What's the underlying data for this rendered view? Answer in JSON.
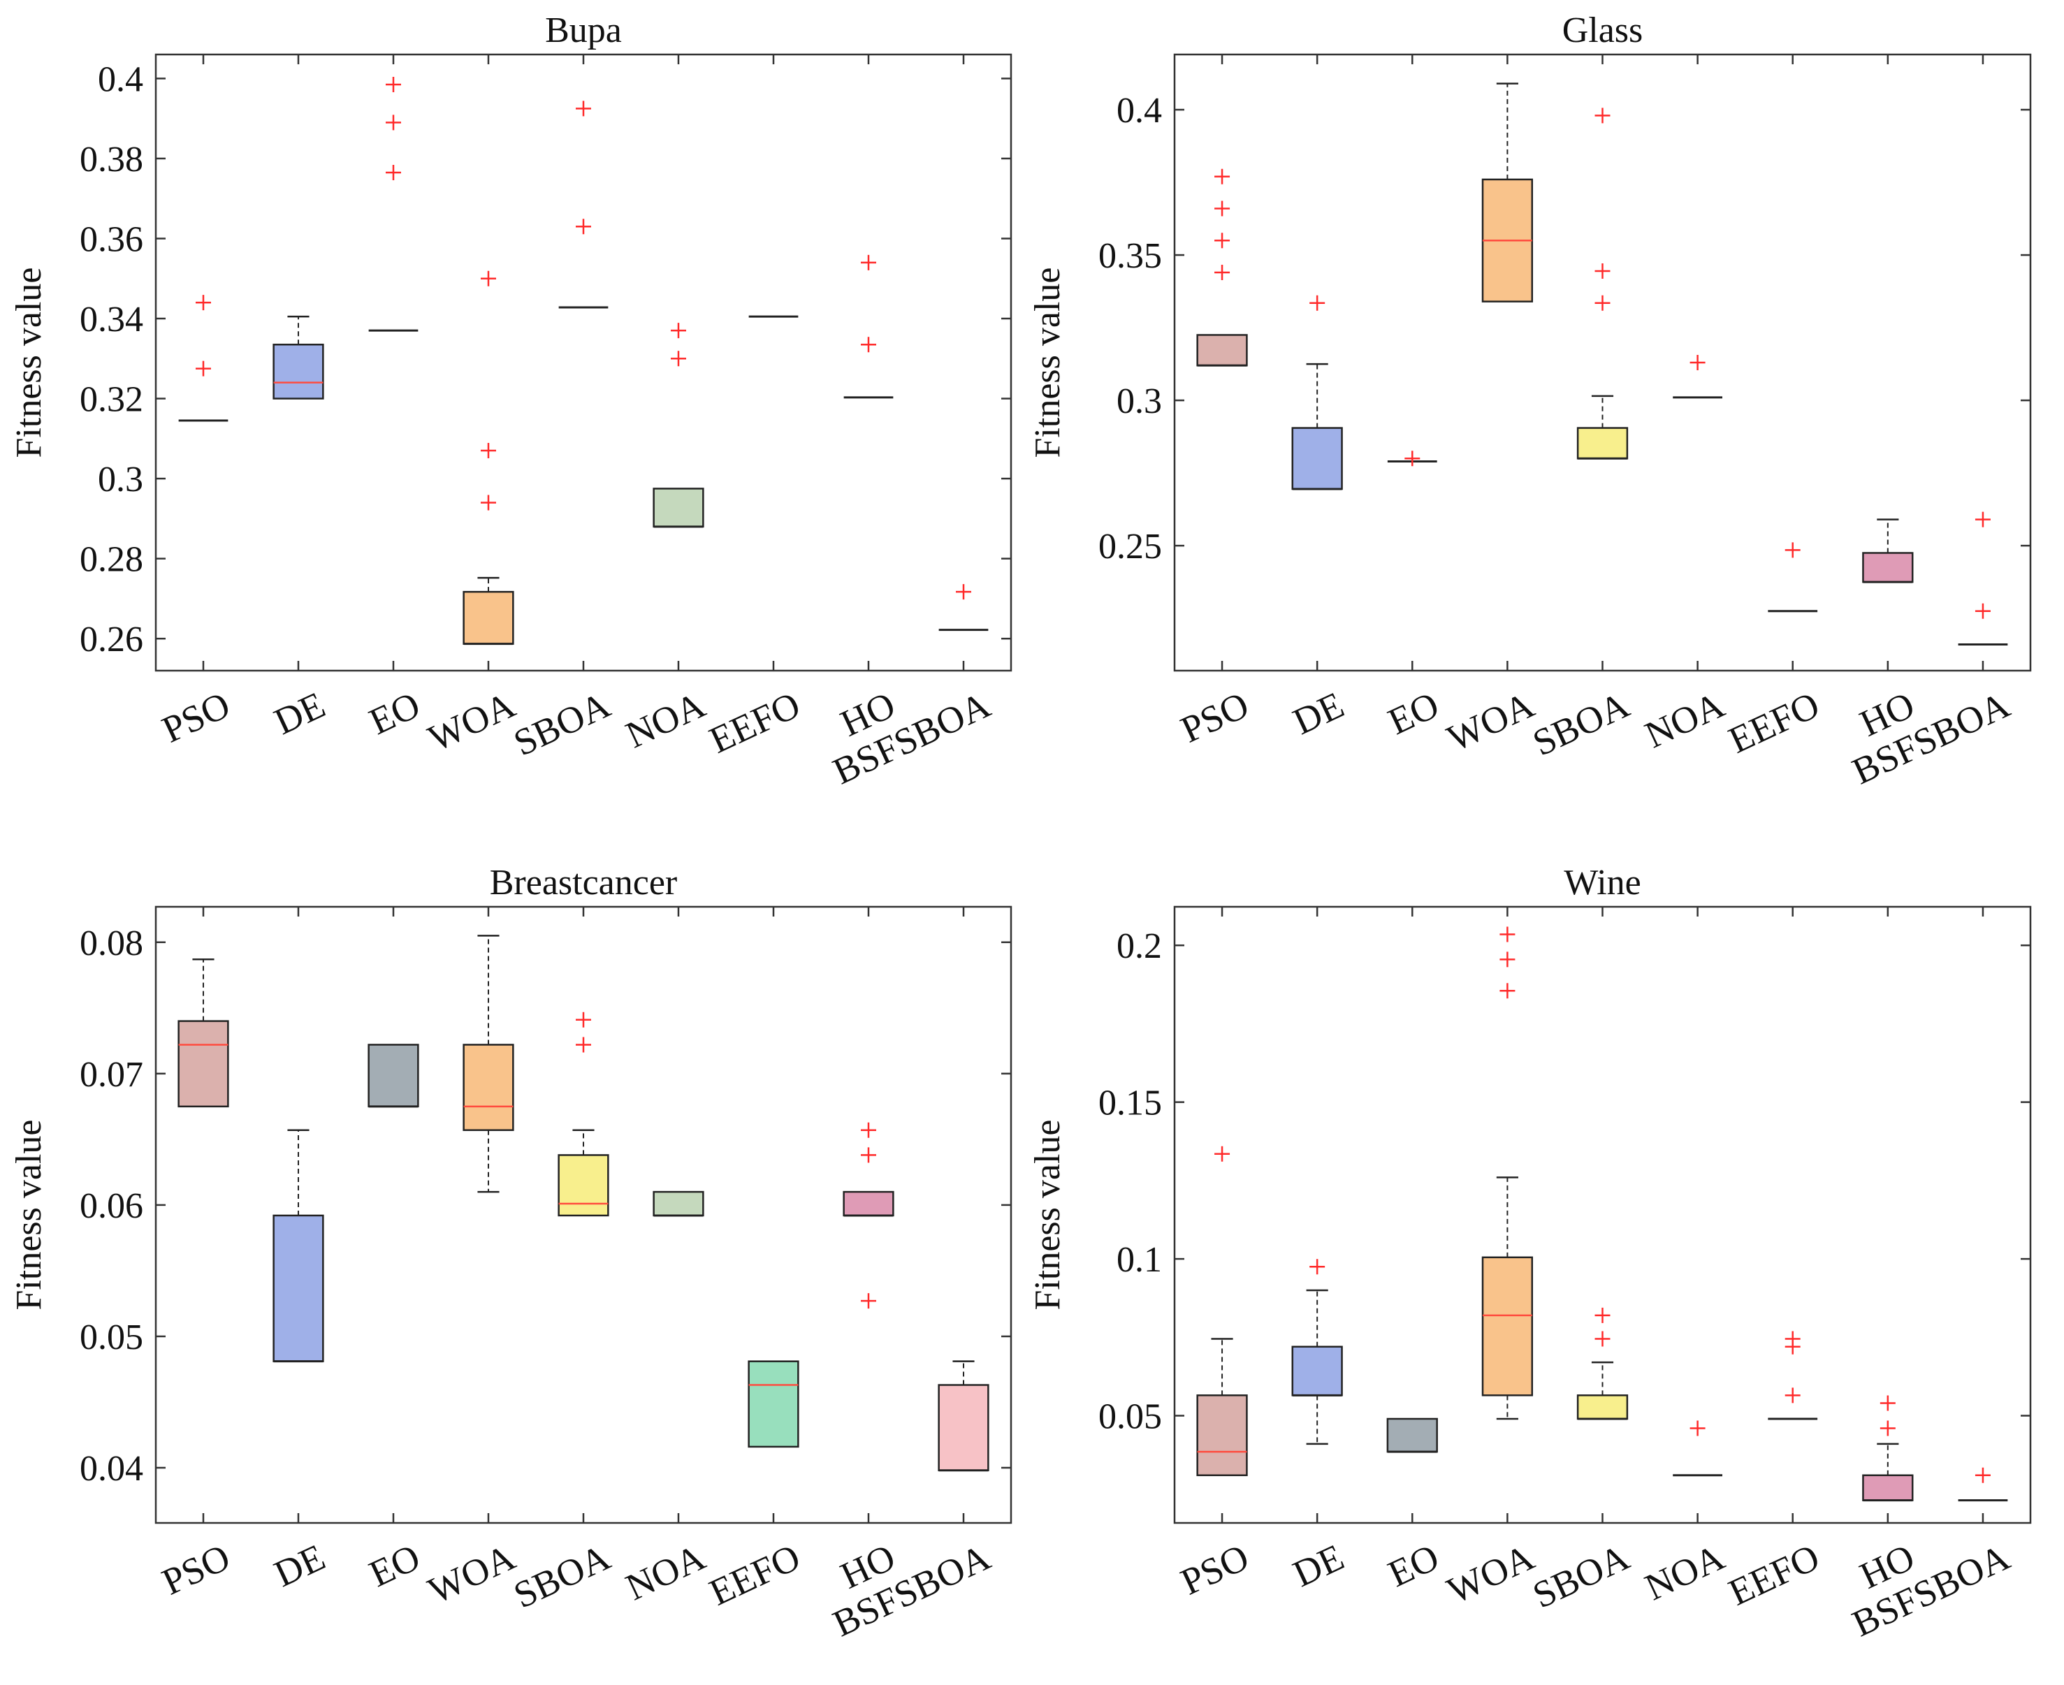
{
  "colors": {
    "PSO": "#dbb1ad",
    "DE": "#9fb0e8",
    "EO": "#a3adb4",
    "WOA": "#f9c38b",
    "SBOA": "#f8ef8d",
    "NOA": "#c5d9bd",
    "EEFO": "#98dfbd",
    "HO": "#df9bb6",
    "BSFSBOA": "#f7c2c6",
    "outlier": "#ff2a2a",
    "median_colored": "#ff4b3e",
    "median_flat": "#222222"
  },
  "chart_data": [
    {
      "type": "boxplot",
      "title": "Bupa",
      "ylabel": "Fitness value",
      "xlabel": "",
      "ylim": [
        0.252,
        0.406
      ],
      "yticks": [
        0.26,
        0.28,
        0.3,
        0.32,
        0.34,
        0.36,
        0.38,
        0.4
      ],
      "ytick_labels": [
        "0.26",
        "0.28",
        "0.3",
        "0.32",
        "0.34",
        "0.36",
        "0.38",
        "0.4"
      ],
      "categories": [
        "PSO",
        "DE",
        "EO",
        "WOA",
        "SBOA",
        "NOA",
        "EEFO",
        "HO",
        "BSFSBOA"
      ],
      "series": [
        {
          "name": "PSO",
          "q1": 0.3145,
          "median": 0.3145,
          "q3": 0.3145,
          "whisker_low": 0.3145,
          "whisker_high": 0.3145,
          "outliers": [
            0.3275,
            0.344
          ]
        },
        {
          "name": "DE",
          "q1": 0.32,
          "median": 0.324,
          "q3": 0.3335,
          "whisker_low": 0.32,
          "whisker_high": 0.3405,
          "outliers": []
        },
        {
          "name": "EO",
          "q1": 0.337,
          "median": 0.337,
          "q3": 0.337,
          "whisker_low": 0.337,
          "whisker_high": 0.337,
          "outliers": [
            0.3765,
            0.389,
            0.3985
          ]
        },
        {
          "name": "WOA",
          "q1": 0.2587,
          "median": 0.2587,
          "q3": 0.2717,
          "whisker_low": 0.2587,
          "whisker_high": 0.2752,
          "outliers": [
            0.294,
            0.307,
            0.35
          ]
        },
        {
          "name": "SBOA",
          "q1": 0.3428,
          "median": 0.3428,
          "q3": 0.3428,
          "whisker_low": 0.3428,
          "whisker_high": 0.3428,
          "outliers": [
            0.363,
            0.3925
          ]
        },
        {
          "name": "NOA",
          "q1": 0.288,
          "median": 0.288,
          "q3": 0.2975,
          "whisker_low": 0.288,
          "whisker_high": 0.2975,
          "outliers": [
            0.33,
            0.337
          ]
        },
        {
          "name": "EEFO",
          "q1": 0.3405,
          "median": 0.3405,
          "q3": 0.3405,
          "whisker_low": 0.3405,
          "whisker_high": 0.3405,
          "outliers": []
        },
        {
          "name": "HO",
          "q1": 0.3203,
          "median": 0.3203,
          "q3": 0.3203,
          "whisker_low": 0.3203,
          "whisker_high": 0.3203,
          "outliers": [
            0.3335,
            0.354
          ]
        },
        {
          "name": "BSFSBOA",
          "q1": 0.2622,
          "median": 0.2622,
          "q3": 0.2622,
          "whisker_low": 0.2622,
          "whisker_high": 0.2622,
          "outliers": [
            0.2717
          ]
        }
      ]
    },
    {
      "type": "boxplot",
      "title": "Glass",
      "ylabel": "Fitness value",
      "xlabel": "",
      "ylim": [
        0.207,
        0.419
      ],
      "yticks": [
        0.25,
        0.3,
        0.35,
        0.4
      ],
      "ytick_labels": [
        "0.25",
        "0.3",
        "0.35",
        "0.4"
      ],
      "categories": [
        "PSO",
        "DE",
        "EO",
        "WOA",
        "SBOA",
        "NOA",
        "EEFO",
        "HO",
        "BSFSBOA"
      ],
      "series": [
        {
          "name": "PSO",
          "q1": 0.312,
          "median": 0.312,
          "q3": 0.3225,
          "whisker_low": 0.312,
          "whisker_high": 0.3225,
          "outliers": [
            0.344,
            0.355,
            0.366,
            0.377
          ]
        },
        {
          "name": "DE",
          "q1": 0.2695,
          "median": 0.2695,
          "q3": 0.2905,
          "whisker_low": 0.2695,
          "whisker_high": 0.3125,
          "outliers": [
            0.3335
          ]
        },
        {
          "name": "EO",
          "q1": 0.279,
          "median": 0.279,
          "q3": 0.279,
          "whisker_low": 0.279,
          "whisker_high": 0.279,
          "outliers": [
            0.28
          ]
        },
        {
          "name": "WOA",
          "q1": 0.334,
          "median": 0.355,
          "q3": 0.376,
          "whisker_low": 0.334,
          "whisker_high": 0.409,
          "outliers": []
        },
        {
          "name": "SBOA",
          "q1": 0.28,
          "median": 0.28,
          "q3": 0.2905,
          "whisker_low": 0.28,
          "whisker_high": 0.3015,
          "outliers": [
            0.3335,
            0.3445,
            0.398
          ]
        },
        {
          "name": "NOA",
          "q1": 0.301,
          "median": 0.301,
          "q3": 0.301,
          "whisker_low": 0.301,
          "whisker_high": 0.301,
          "outliers": [
            0.313
          ]
        },
        {
          "name": "EEFO",
          "q1": 0.2275,
          "median": 0.2275,
          "q3": 0.2275,
          "whisker_low": 0.2275,
          "whisker_high": 0.2275,
          "outliers": [
            0.2485
          ]
        },
        {
          "name": "HO",
          "q1": 0.2375,
          "median": 0.2375,
          "q3": 0.2475,
          "whisker_low": 0.2375,
          "whisker_high": 0.259,
          "outliers": []
        },
        {
          "name": "BSFSBOA",
          "q1": 0.216,
          "median": 0.216,
          "q3": 0.216,
          "whisker_low": 0.216,
          "whisker_high": 0.216,
          "outliers": [
            0.2275,
            0.259
          ]
        }
      ]
    },
    {
      "type": "boxplot",
      "title": "Breastcancer",
      "ylabel": "Fitness value",
      "xlabel": "",
      "ylim": [
        0.0358,
        0.0827
      ],
      "yticks": [
        0.04,
        0.05,
        0.06,
        0.07,
        0.08
      ],
      "ytick_labels": [
        "0.04",
        "0.05",
        "0.06",
        "0.07",
        "0.08"
      ],
      "categories": [
        "PSO",
        "DE",
        "EO",
        "WOA",
        "SBOA",
        "NOA",
        "EEFO",
        "HO",
        "BSFSBOA"
      ],
      "series": [
        {
          "name": "PSO",
          "q1": 0.0675,
          "median": 0.0722,
          "q3": 0.074,
          "whisker_low": 0.0675,
          "whisker_high": 0.0787,
          "outliers": []
        },
        {
          "name": "DE",
          "q1": 0.0481,
          "median": 0.0481,
          "q3": 0.0592,
          "whisker_low": 0.0481,
          "whisker_high": 0.0657,
          "outliers": []
        },
        {
          "name": "EO",
          "q1": 0.0675,
          "median": 0.0675,
          "q3": 0.0722,
          "whisker_low": 0.0675,
          "whisker_high": 0.0722,
          "outliers": []
        },
        {
          "name": "WOA",
          "q1": 0.0657,
          "median": 0.0675,
          "q3": 0.0722,
          "whisker_low": 0.061,
          "whisker_high": 0.0805,
          "outliers": []
        },
        {
          "name": "SBOA",
          "q1": 0.0592,
          "median": 0.0601,
          "q3": 0.0638,
          "whisker_low": 0.0592,
          "whisker_high": 0.0657,
          "outliers": [
            0.0722,
            0.0741
          ]
        },
        {
          "name": "NOA",
          "q1": 0.0592,
          "median": 0.0592,
          "q3": 0.061,
          "whisker_low": 0.0592,
          "whisker_high": 0.061,
          "outliers": []
        },
        {
          "name": "EEFO",
          "q1": 0.0416,
          "median": 0.0463,
          "q3": 0.0481,
          "whisker_low": 0.0416,
          "whisker_high": 0.0481,
          "outliers": []
        },
        {
          "name": "HO",
          "q1": 0.0592,
          "median": 0.0592,
          "q3": 0.061,
          "whisker_low": 0.0592,
          "whisker_high": 0.061,
          "outliers": [
            0.0527,
            0.0638,
            0.0657
          ]
        },
        {
          "name": "BSFSBOA",
          "q1": 0.0398,
          "median": 0.0398,
          "q3": 0.0463,
          "whisker_low": 0.0398,
          "whisker_high": 0.0481,
          "outliers": []
        }
      ]
    },
    {
      "type": "boxplot",
      "title": "Wine",
      "ylabel": "Fitness value",
      "xlabel": "",
      "ylim": [
        0.0158,
        0.2123
      ],
      "yticks": [
        0.05,
        0.1,
        0.15,
        0.2
      ],
      "ytick_labels": [
        "0.05",
        "0.1",
        "0.15",
        "0.2"
      ],
      "categories": [
        "PSO",
        "DE",
        "EO",
        "WOA",
        "SBOA",
        "NOA",
        "EEFO",
        "HO",
        "BSFSBOA"
      ],
      "series": [
        {
          "name": "PSO",
          "q1": 0.031,
          "median": 0.0385,
          "q3": 0.0565,
          "whisker_low": 0.031,
          "whisker_high": 0.0745,
          "outliers": [
            0.1335
          ]
        },
        {
          "name": "DE",
          "q1": 0.0565,
          "median": 0.0565,
          "q3": 0.072,
          "whisker_low": 0.041,
          "whisker_high": 0.09,
          "outliers": [
            0.0975
          ]
        },
        {
          "name": "EO",
          "q1": 0.0385,
          "median": 0.0385,
          "q3": 0.049,
          "whisker_low": 0.0385,
          "whisker_high": 0.049,
          "outliers": []
        },
        {
          "name": "WOA",
          "q1": 0.0565,
          "median": 0.082,
          "q3": 0.1005,
          "whisker_low": 0.049,
          "whisker_high": 0.126,
          "outliers": [
            0.1855,
            0.1955,
            0.2035
          ]
        },
        {
          "name": "SBOA",
          "q1": 0.049,
          "median": 0.049,
          "q3": 0.0565,
          "whisker_low": 0.049,
          "whisker_high": 0.067,
          "outliers": [
            0.0745,
            0.082
          ]
        },
        {
          "name": "NOA",
          "q1": 0.031,
          "median": 0.031,
          "q3": 0.031,
          "whisker_low": 0.031,
          "whisker_high": 0.031,
          "outliers": [
            0.046
          ]
        },
        {
          "name": "EEFO",
          "q1": 0.049,
          "median": 0.049,
          "q3": 0.049,
          "whisker_low": 0.049,
          "whisker_high": 0.049,
          "outliers": [
            0.0565,
            0.072,
            0.0745
          ]
        },
        {
          "name": "HO",
          "q1": 0.023,
          "median": 0.023,
          "q3": 0.031,
          "whisker_low": 0.023,
          "whisker_high": 0.041,
          "outliers": [
            0.046,
            0.054
          ]
        },
        {
          "name": "BSFSBOA",
          "q1": 0.023,
          "median": 0.023,
          "q3": 0.023,
          "whisker_low": 0.023,
          "whisker_high": 0.023,
          "outliers": [
            0.031
          ]
        }
      ]
    }
  ]
}
